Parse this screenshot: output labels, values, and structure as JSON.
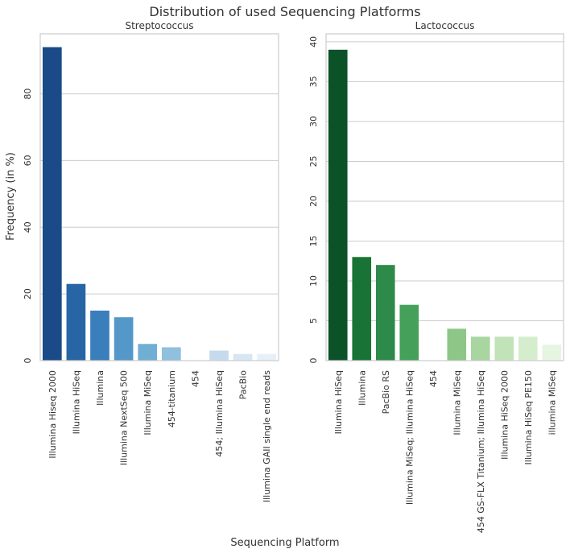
{
  "figure": {
    "title": "Distribution of used Sequencing Platforms",
    "xlabel": "Sequencing Platform",
    "ylabel": "Frequency (in %)"
  },
  "chart_data": [
    {
      "type": "bar",
      "title": "Streptococcus",
      "categories": [
        "Illumina Hiseq 2000",
        "Illumina HiSeq",
        "Illumina",
        "Illumina NextSeq 500",
        "Illumina MiSeq",
        "454-titanium",
        "454",
        "454; Illumina HiSeq",
        "PacBio",
        "Illumina GAII single end reads"
      ],
      "values": [
        94,
        23,
        15,
        13,
        5,
        4,
        0,
        3,
        2,
        2
      ],
      "colors": [
        "#1a4a87",
        "#2765a5",
        "#3a7ebc",
        "#5398c8",
        "#70aed4",
        "#8fc0de",
        "#adcfe6",
        "#c5daec",
        "#d7e6f3",
        "#e7eff8"
      ],
      "ylim": [
        0,
        98
      ],
      "yticks": [
        0,
        20,
        40,
        60,
        80
      ],
      "grid": true
    },
    {
      "type": "bar",
      "title": "Lactococcus",
      "categories": [
        "Illumina HiSeq",
        "Illumina",
        "PacBio RS",
        "Illumina MiSeq; Illumina HiSeq",
        "454",
        "Illumina MiSeq",
        "454 GS-FLX Titanium; Illumina HiSeq",
        "Illumina HiSeq 2000",
        "Illumina HiSeq PE150",
        "illumina MiSeq"
      ],
      "values": [
        39,
        13,
        12,
        7,
        0,
        4,
        3,
        3,
        3,
        2
      ],
      "colors": [
        "#0b5229",
        "#1a7336",
        "#2d8a4a",
        "#45a05a",
        "#70b77a",
        "#8ec687",
        "#a8d5a0",
        "#c1e3b7",
        "#d4edcd",
        "#e6f5e1"
      ],
      "ylim": [
        0,
        41
      ],
      "yticks": [
        0,
        5,
        10,
        15,
        20,
        25,
        30,
        35,
        40
      ],
      "grid": true
    }
  ]
}
